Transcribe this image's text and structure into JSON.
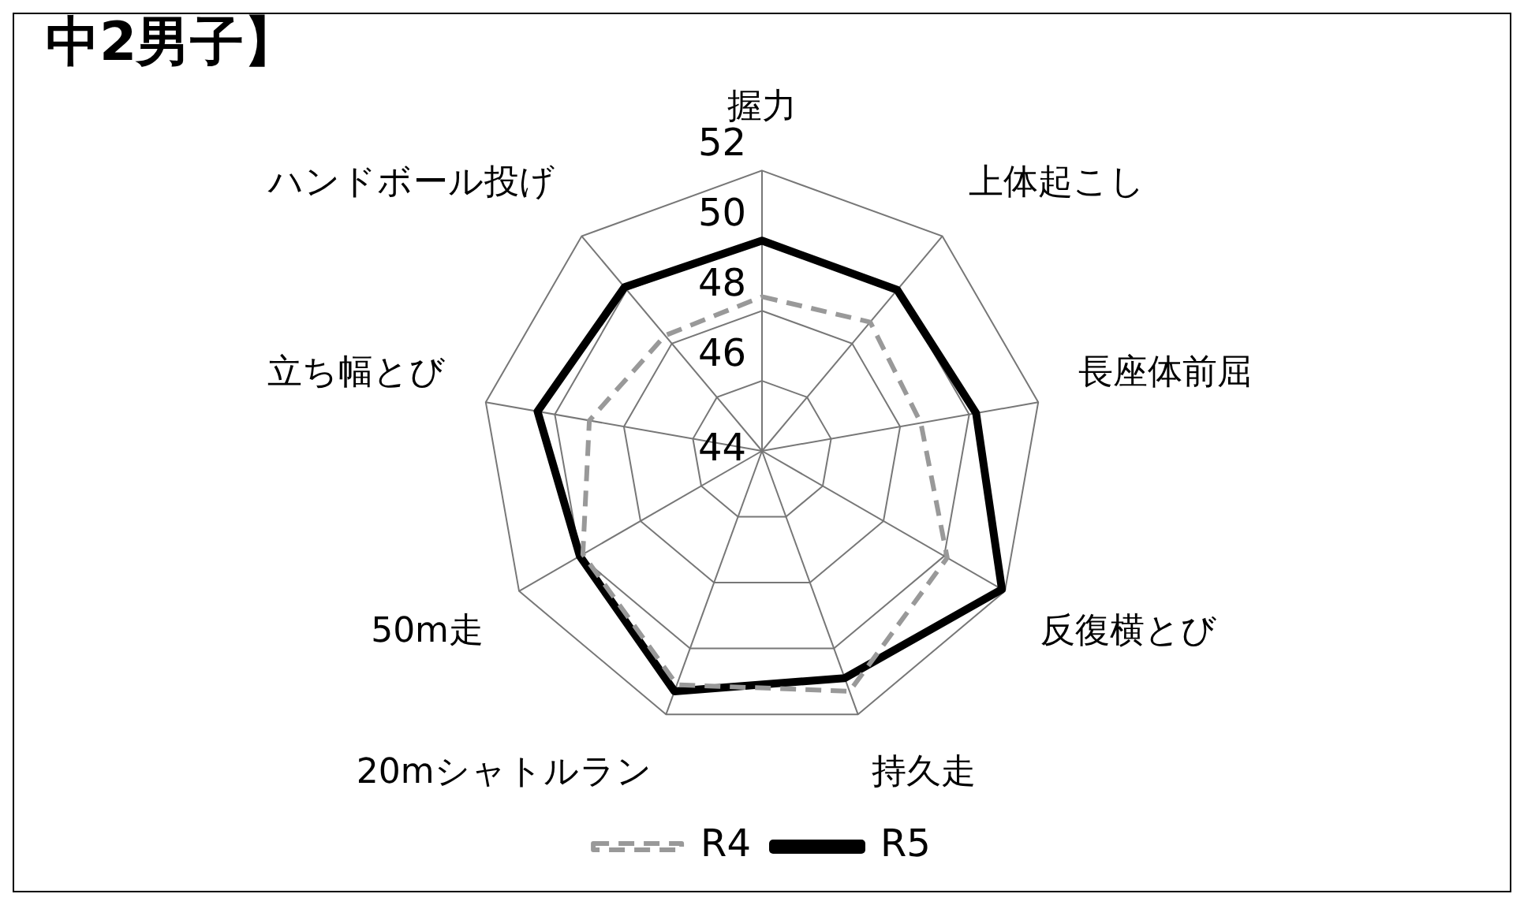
{
  "chart_data": {
    "type": "radar",
    "title": "中2男子】",
    "categories": [
      "握力",
      "上体起こし",
      "長座体前屈",
      "反復横とび",
      "持久走",
      "20mシャトルラン",
      "50m走",
      "立ち幅とび",
      "ハンドボール投げ"
    ],
    "ylim": [
      44,
      52
    ],
    "yticks": [
      44,
      46,
      48,
      50,
      52
    ],
    "grid": true,
    "legend": "bottom",
    "marker": "none",
    "series": [
      {
        "name": "R4",
        "color": "#999999",
        "line_style": "dashed",
        "values": [
          48.4,
          48.8,
          48.6,
          50.1,
          51.3,
          51.1,
          49.9,
          49.0,
          48.3
        ]
      },
      {
        "name": "R5",
        "color": "#000000",
        "line_style": "solid",
        "values": [
          50.0,
          50.0,
          50.2,
          51.9,
          50.9,
          51.3,
          50.0,
          50.5,
          50.1
        ]
      }
    ]
  }
}
